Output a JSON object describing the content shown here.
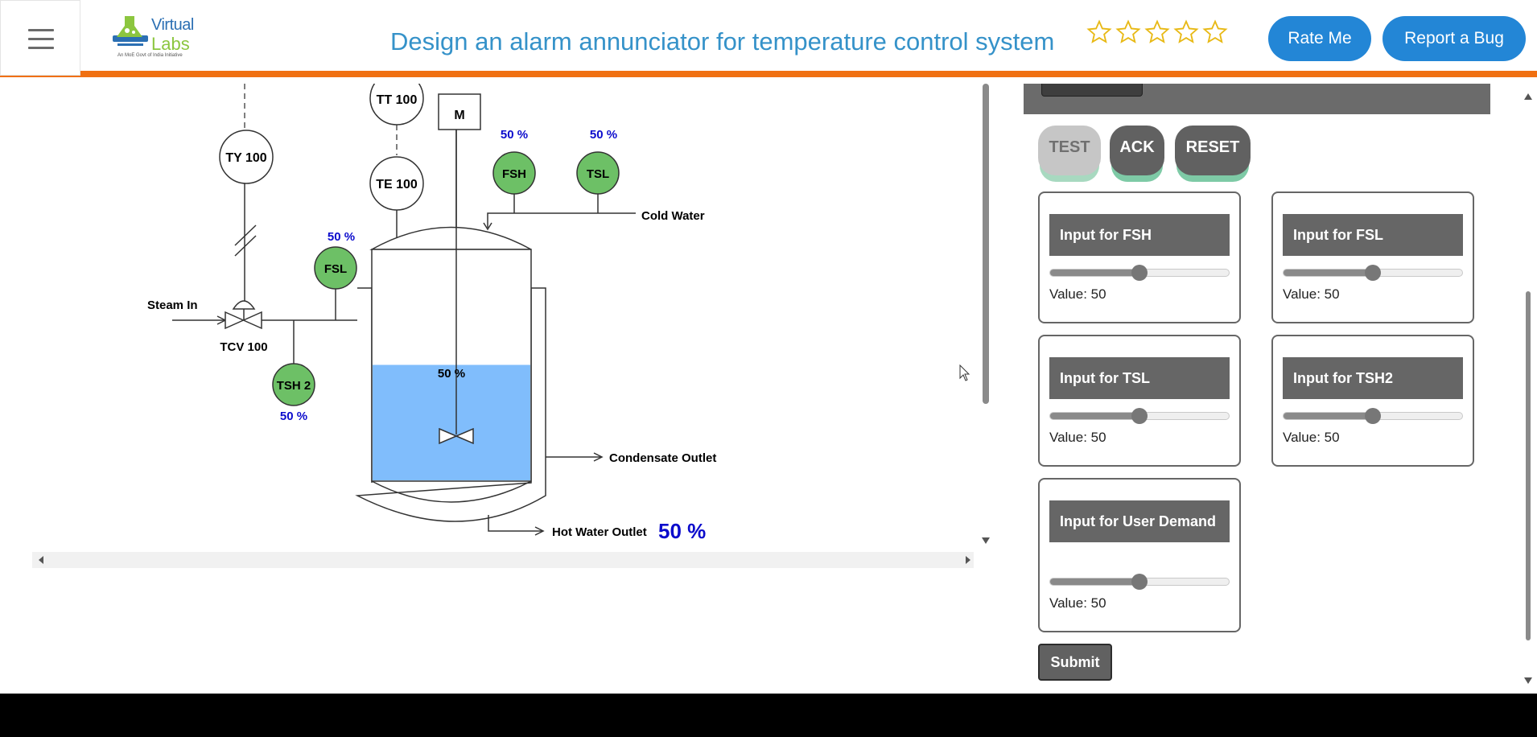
{
  "header": {
    "logo": {
      "virtual": "Virtual",
      "labs": "Labs",
      "tagline": "An MoE Govt of India Initiative"
    },
    "title": "Design an alarm annunciator for temperature control system",
    "rating": {
      "stars": 5,
      "filled": 0
    },
    "rate_label": "Rate Me",
    "bug_label": "Report a Bug"
  },
  "diagram": {
    "instruments": {
      "ty100": "TY 100",
      "tt100": "TT 100",
      "te100": "TE 100",
      "motor": "M",
      "fsh": "FSH",
      "tsl": "TSL",
      "fsl": "FSL",
      "tsh2": "TSH 2",
      "tcv100": "TCV 100"
    },
    "readings": {
      "fsh": "50 %",
      "tsl": "50 %",
      "fsl": "50 %",
      "tsh2": "50 %",
      "tank_level": "50 %",
      "hot_water": "50 %"
    },
    "streams": {
      "steam_in": "Steam In",
      "cold_water": "Cold Water",
      "condensate_outlet": "Condensate Outlet",
      "hot_water_outlet": "Hot Water Outlet"
    },
    "tank_fill_level": 0.5
  },
  "controls": {
    "test_label": "TEST",
    "ack_label": "ACK",
    "reset_label": "RESET",
    "submit_label": "Submit",
    "inputs": [
      {
        "title": "Input for FSH",
        "value_label": "Value: 50",
        "value": 50,
        "max": 100
      },
      {
        "title": "Input for FSL",
        "value_label": "Value: 50",
        "value": 50,
        "max": 100
      },
      {
        "title": "Input for TSL",
        "value_label": "Value: 50",
        "value": 50,
        "max": 100
      },
      {
        "title": "Input for TSH2",
        "value_label": "Value: 50",
        "value": 50,
        "max": 100
      },
      {
        "title": "Input for User Demand",
        "value_label": "Value: 50",
        "value": 50,
        "max": 100
      }
    ]
  },
  "colors": {
    "accent_orange": "#f07012",
    "brand_blue": "#3592c9",
    "button_blue": "#2386d6",
    "alarm_green": "#6dc066",
    "reading_blue": "#0b0bcc",
    "water_blue": "#80bdfc",
    "panel_gray": "#666666"
  }
}
